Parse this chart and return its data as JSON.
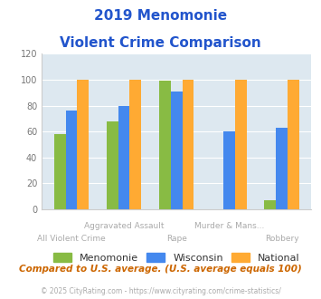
{
  "title_line1": "2019 Menomonie",
  "title_line2": "Violent Crime Comparison",
  "categories": [
    "All Violent Crime",
    "Aggravated Assault",
    "Rape",
    "Murder & Mans...",
    "Robbery"
  ],
  "menomonie": [
    58,
    68,
    99,
    0,
    7
  ],
  "wisconsin": [
    76,
    80,
    91,
    60,
    63
  ],
  "national": [
    100,
    100,
    100,
    100,
    100
  ],
  "colors": {
    "menomonie": "#88bb44",
    "wisconsin": "#4488ee",
    "national": "#ffaa33"
  },
  "ylim": [
    0,
    120
  ],
  "yticks": [
    0,
    20,
    40,
    60,
    80,
    100,
    120
  ],
  "background_color": "#dde8f0",
  "title_color": "#2255cc",
  "label_color": "#aaaaaa",
  "footer_text": "Compared to U.S. average. (U.S. average equals 100)",
  "copyright_text": "© 2025 CityRating.com - https://www.cityrating.com/crime-statistics/",
  "legend_labels": [
    "Menomonie",
    "Wisconsin",
    "National"
  ],
  "bar_width": 0.22,
  "figsize": [
    3.55,
    3.3
  ],
  "dpi": 100
}
